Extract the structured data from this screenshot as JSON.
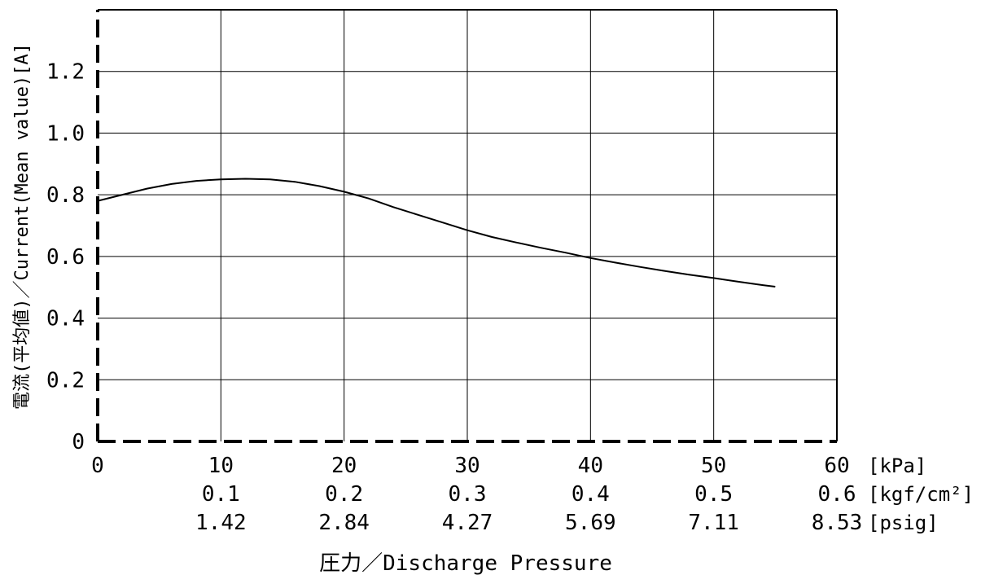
{
  "chart_data": {
    "type": "line",
    "xlabel": "圧力／Discharge Pressure",
    "ylabel": "電流(平均値)／Current(Mean value)[A]",
    "xlim": [
      0,
      60
    ],
    "ylim": [
      0,
      1.4
    ],
    "grid": true,
    "x_ticks": [
      {
        "value": 0,
        "labels": [
          "0",
          "",
          ""
        ]
      },
      {
        "value": 10,
        "labels": [
          "10",
          "0.1",
          "1.42"
        ]
      },
      {
        "value": 20,
        "labels": [
          "20",
          "0.2",
          "2.84"
        ]
      },
      {
        "value": 30,
        "labels": [
          "30",
          "0.3",
          "4.27"
        ]
      },
      {
        "value": 40,
        "labels": [
          "40",
          "0.4",
          "5.69"
        ]
      },
      {
        "value": 50,
        "labels": [
          "50",
          "0.5",
          "7.11"
        ]
      },
      {
        "value": 60,
        "labels": [
          "60",
          "0.6",
          "8.53"
        ]
      }
    ],
    "x_unit_labels": [
      "[kPa]",
      "[kgf/cm²]",
      "[psig]"
    ],
    "y_ticks": [
      {
        "value": 0,
        "label": "0"
      },
      {
        "value": 0.2,
        "label": "0.2"
      },
      {
        "value": 0.4,
        "label": "0.4"
      },
      {
        "value": 0.6,
        "label": "0.6"
      },
      {
        "value": 0.8,
        "label": "0.8"
      },
      {
        "value": 1.0,
        "label": "1.0"
      },
      {
        "value": 1.2,
        "label": "1.2"
      }
    ],
    "series": [
      {
        "color": "#000000",
        "points": [
          [
            0,
            0.78
          ],
          [
            2,
            0.8
          ],
          [
            4,
            0.82
          ],
          [
            6,
            0.835
          ],
          [
            8,
            0.845
          ],
          [
            10,
            0.85
          ],
          [
            12,
            0.852
          ],
          [
            14,
            0.85
          ],
          [
            16,
            0.842
          ],
          [
            18,
            0.828
          ],
          [
            20,
            0.81
          ],
          [
            22,
            0.788
          ],
          [
            24,
            0.76
          ],
          [
            26,
            0.735
          ],
          [
            28,
            0.71
          ],
          [
            30,
            0.685
          ],
          [
            32,
            0.663
          ],
          [
            34,
            0.645
          ],
          [
            36,
            0.628
          ],
          [
            38,
            0.612
          ],
          [
            40,
            0.595
          ],
          [
            42,
            0.58
          ],
          [
            44,
            0.566
          ],
          [
            46,
            0.553
          ],
          [
            48,
            0.541
          ],
          [
            50,
            0.53
          ],
          [
            52,
            0.518
          ],
          [
            54,
            0.507
          ],
          [
            55,
            0.502
          ]
        ]
      }
    ]
  }
}
